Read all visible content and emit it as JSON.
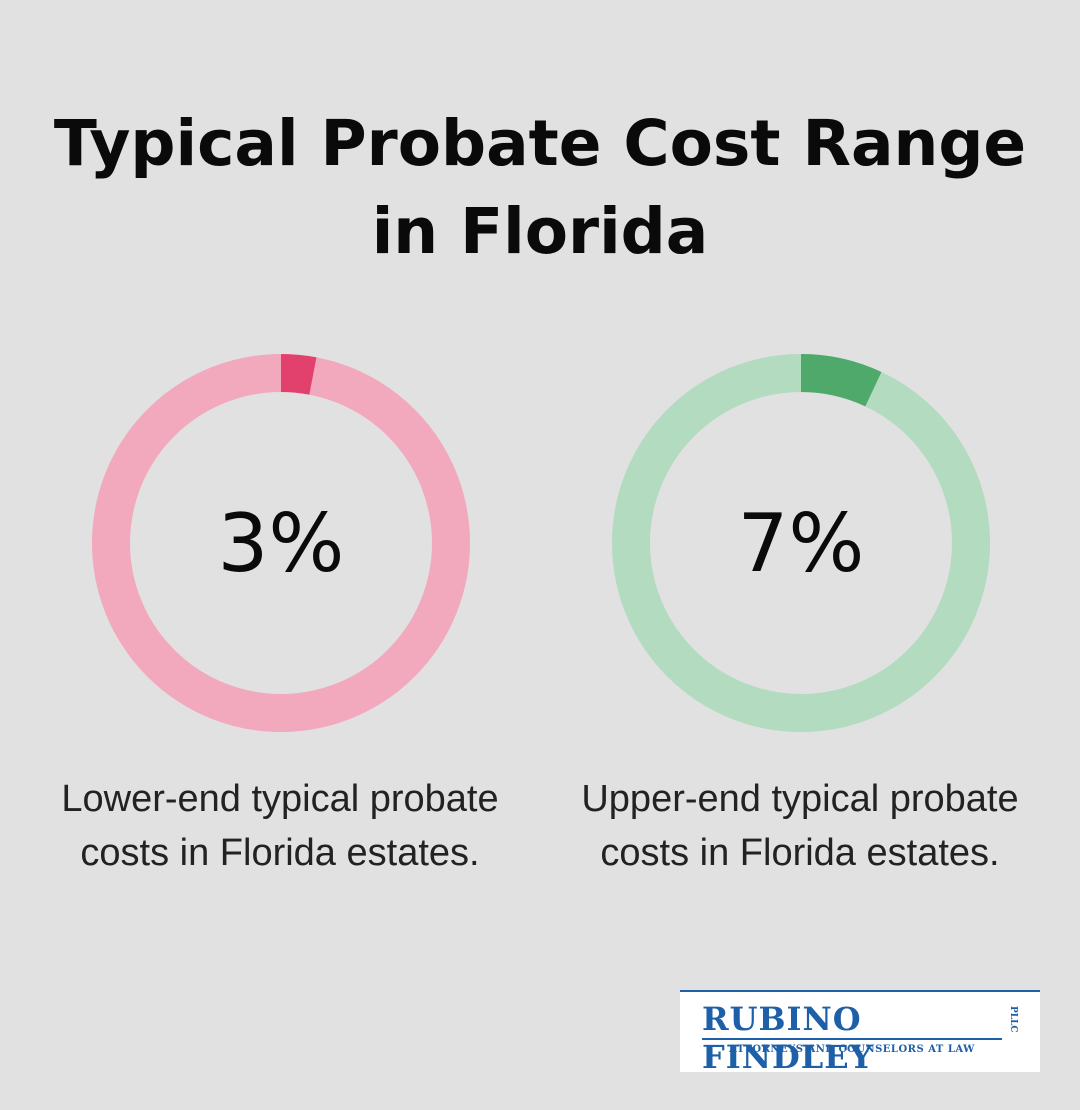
{
  "title_lines": [
    "Typical Probate Cost Range",
    "in Florida"
  ],
  "chart_data": [
    {
      "type": "pie",
      "value": 3,
      "max": 100,
      "label": "3%",
      "caption_lines": [
        "Lower-end typical probate",
        "costs in Florida estates."
      ],
      "colors": {
        "fill": "#e2416e",
        "track": "#f2a8bd"
      }
    },
    {
      "type": "pie",
      "value": 7,
      "max": 100,
      "label": "7%",
      "caption_lines": [
        "Upper-end typical probate",
        "costs in Florida estates."
      ],
      "colors": {
        "fill": "#4ea96a",
        "track": "#b2dbc0"
      }
    }
  ],
  "logo": {
    "name": "RUBINO FINDLEY",
    "suffix": "PLLC",
    "tagline": "ATTORNEYS AND COUNSELORS AT LAW"
  }
}
